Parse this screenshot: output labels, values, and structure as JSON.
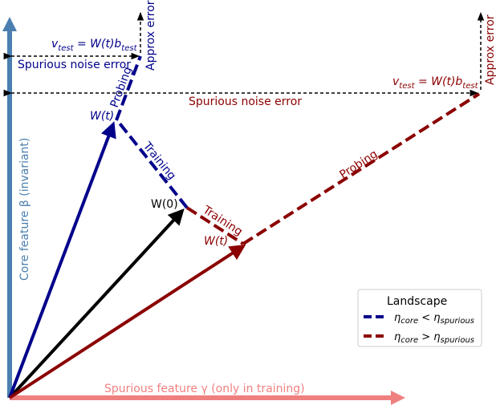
{
  "axes": {
    "y_label": "Core feature β (invariant)",
    "x_label": "Spurious feature γ (only in training)",
    "y_color": "#4a7fb0",
    "x_color": "#f08080"
  },
  "colors": {
    "blue": "#00008b",
    "red": "#8b0000",
    "black": "#000000"
  },
  "labels": {
    "w0": "W(0)",
    "wt_blue": "W(t)",
    "wt_red": "W(t)",
    "training_blue": "Training",
    "training_red": "Training",
    "probing_blue": "Probing",
    "probing_red": "Probing",
    "vtest_blue": "v_test = W(t)b_test",
    "vtest_red": "v_test = W(t)b_test",
    "approx_blue": "Approx error",
    "approx_red": "Approx error",
    "spurious_blue": "Spurious noise error",
    "spurious_red": "Spurious noise error"
  },
  "legend": {
    "title": "Landscape",
    "items": [
      {
        "label": "η_core < η_spurious",
        "color": "#00008b"
      },
      {
        "label": "η_core > η_spurious",
        "color": "#8b0000"
      }
    ]
  }
}
